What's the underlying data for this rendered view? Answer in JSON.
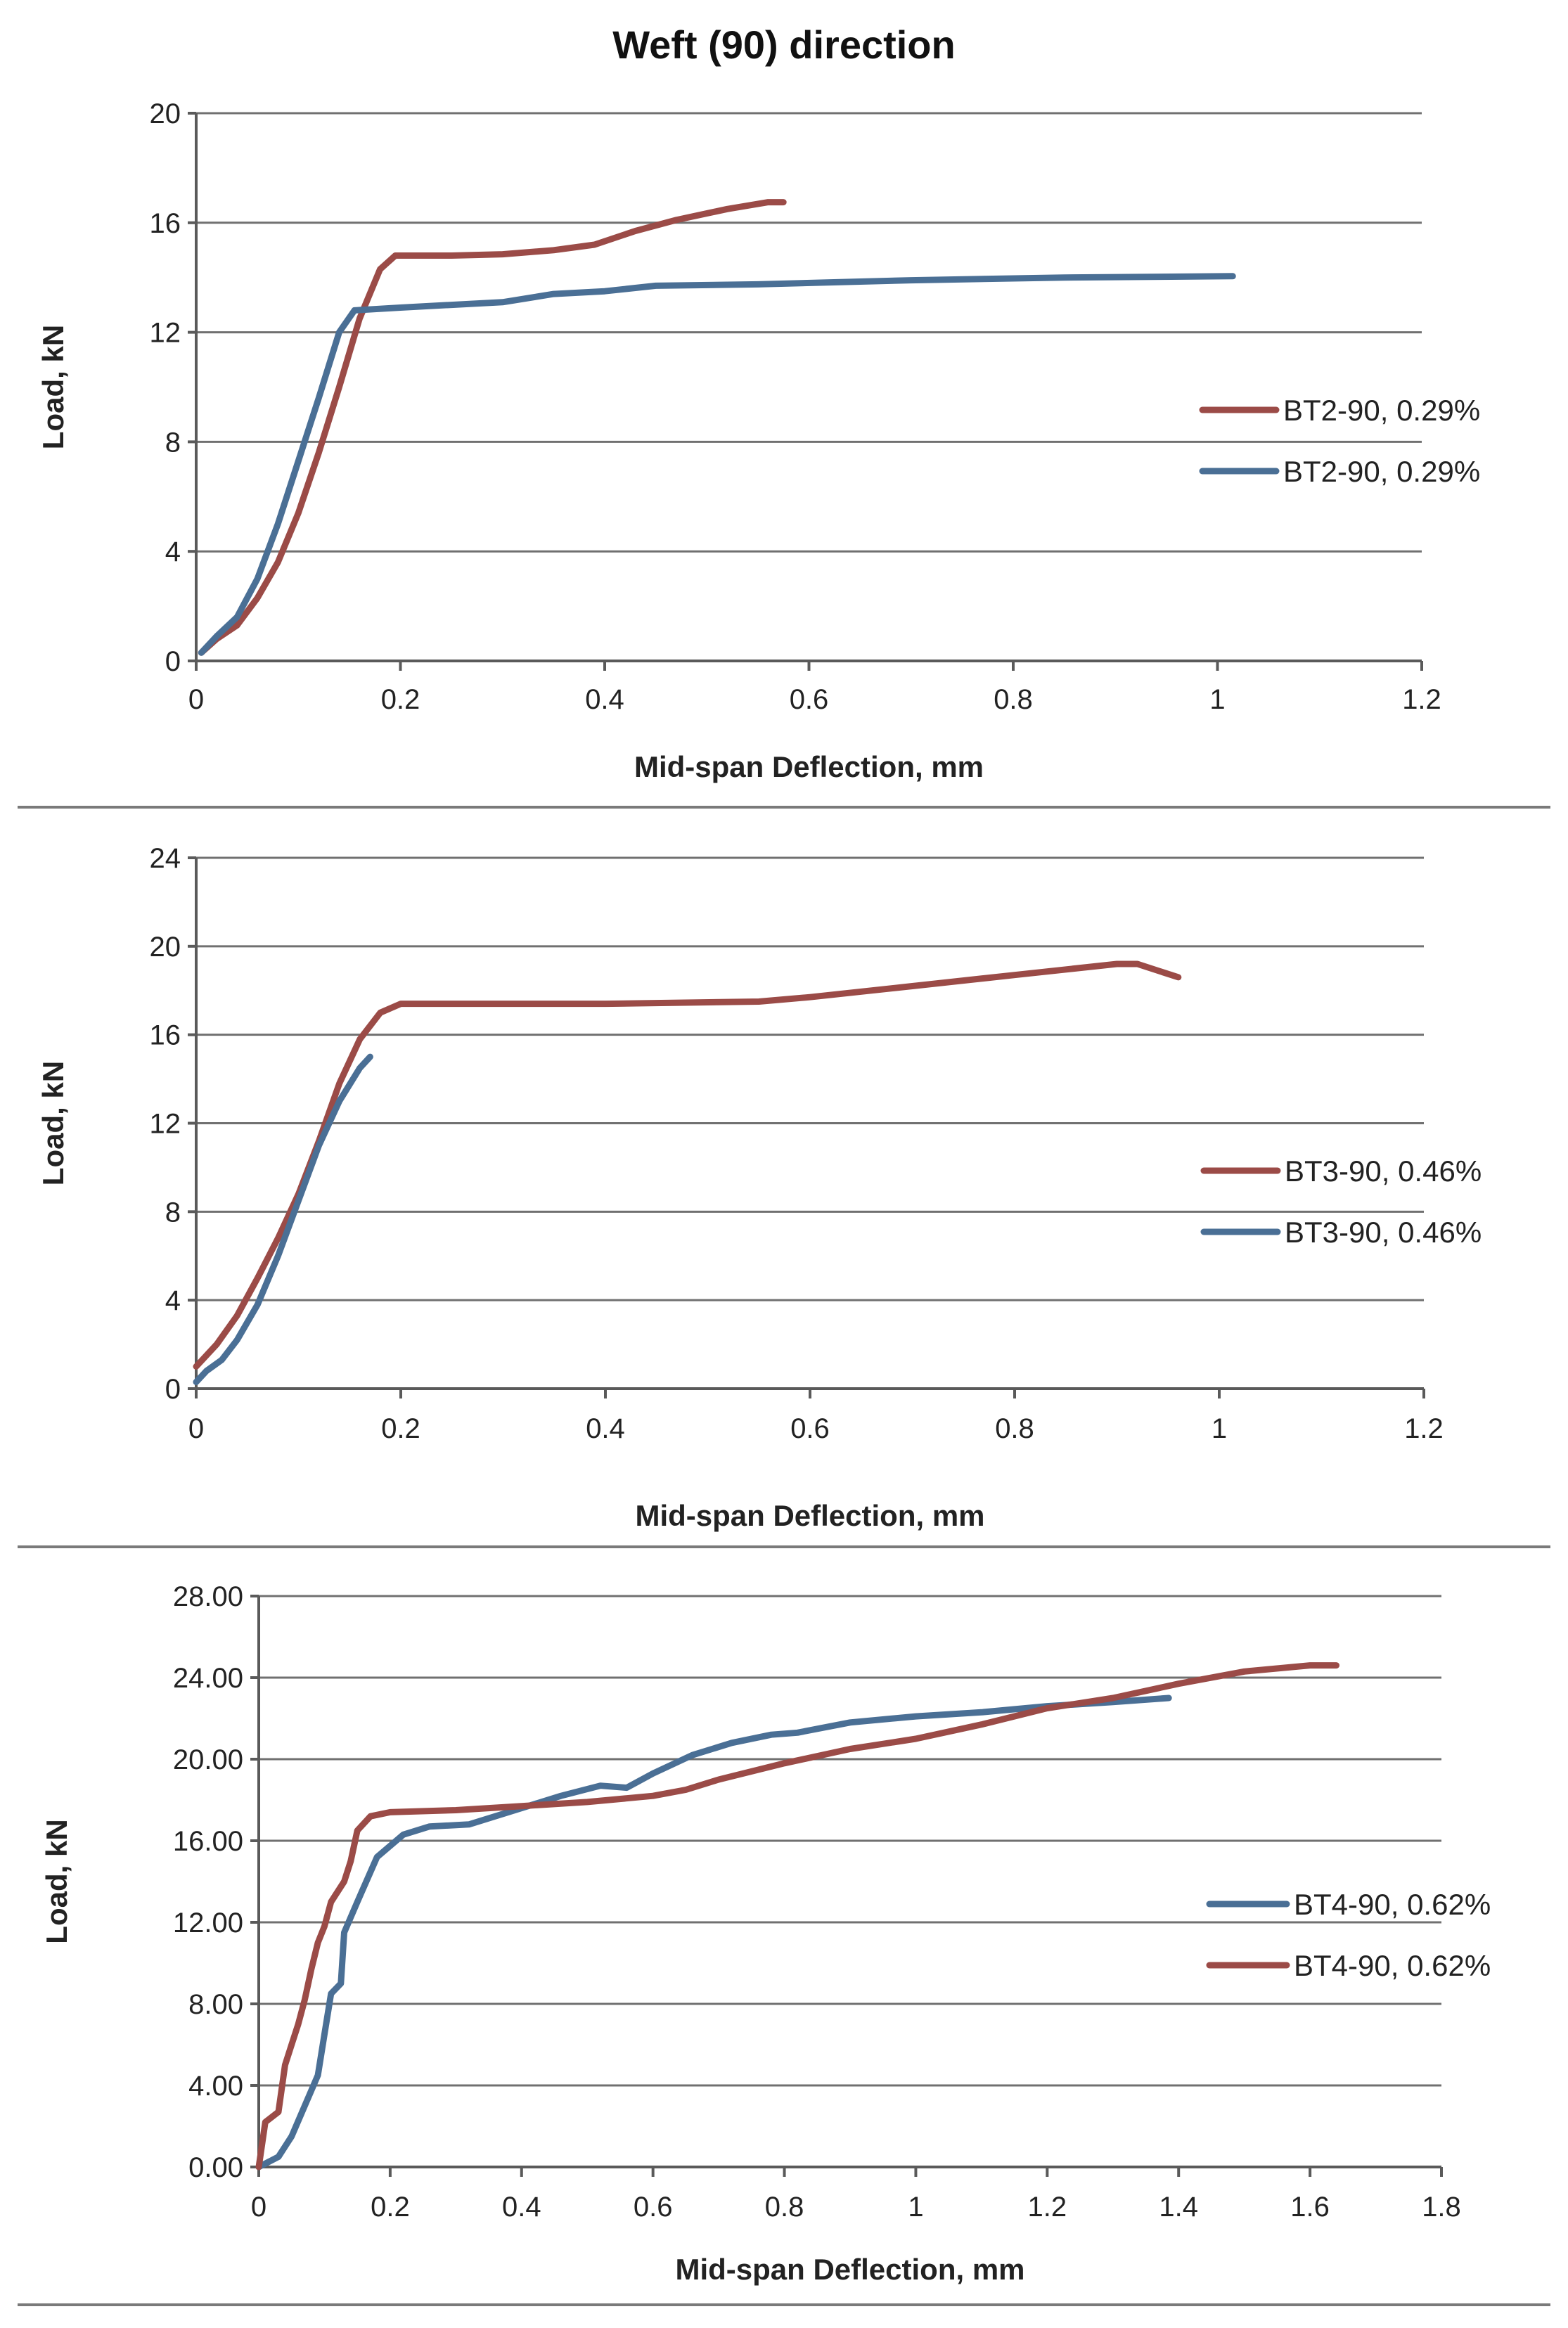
{
  "figure_title": "Weft (90) direction",
  "colors": {
    "red": "#9b4b47",
    "blue": "#4a6f95"
  },
  "chart_data": [
    {
      "type": "line",
      "title": "",
      "xlabel": "Mid-span Deflection, mm",
      "ylabel": "Load, kN",
      "xlim": [
        0,
        1.2
      ],
      "ylim": [
        0,
        20
      ],
      "xticks": [
        "0",
        "0.2",
        "0.4",
        "0.6",
        "0.8",
        "1",
        "1.2"
      ],
      "yticks": [
        "0",
        "4",
        "8",
        "12",
        "16",
        "20"
      ],
      "legend_position": "right",
      "series": [
        {
          "name": "BT2-90, 0.29%",
          "color": "#9b4b47",
          "points": [
            [
              0.005,
              0.3
            ],
            [
              0.02,
              0.8
            ],
            [
              0.04,
              1.3
            ],
            [
              0.06,
              2.3
            ],
            [
              0.08,
              3.6
            ],
            [
              0.1,
              5.4
            ],
            [
              0.12,
              7.6
            ],
            [
              0.14,
              10
            ],
            [
              0.16,
              12.5
            ],
            [
              0.18,
              14.3
            ],
            [
              0.195,
              14.8
            ],
            [
              0.25,
              14.8
            ],
            [
              0.3,
              14.85
            ],
            [
              0.35,
              15.0
            ],
            [
              0.39,
              15.2
            ],
            [
              0.43,
              15.7
            ],
            [
              0.47,
              16.1
            ],
            [
              0.52,
              16.5
            ],
            [
              0.56,
              16.75
            ],
            [
              0.575,
              16.75
            ]
          ]
        },
        {
          "name": "BT2-90, 0.29%",
          "color": "#4a6f95",
          "points": [
            [
              0.005,
              0.3
            ],
            [
              0.02,
              0.9
            ],
            [
              0.04,
              1.6
            ],
            [
              0.06,
              3.0
            ],
            [
              0.08,
              5.0
            ],
            [
              0.1,
              7.3
            ],
            [
              0.12,
              9.6
            ],
            [
              0.14,
              12.0
            ],
            [
              0.155,
              12.8
            ],
            [
              0.2,
              12.9
            ],
            [
              0.25,
              13.0
            ],
            [
              0.3,
              13.1
            ],
            [
              0.35,
              13.4
            ],
            [
              0.4,
              13.5
            ],
            [
              0.45,
              13.7
            ],
            [
              0.55,
              13.75
            ],
            [
              0.7,
              13.9
            ],
            [
              0.85,
              14.0
            ],
            [
              1.015,
              14.05
            ]
          ]
        }
      ]
    },
    {
      "type": "line",
      "title": "",
      "xlabel": "Mid-span Deflection, mm",
      "ylabel": "Load, kN",
      "xlim": [
        0,
        1.2
      ],
      "ylim": [
        0,
        24
      ],
      "xticks": [
        "0",
        "0.2",
        "0.4",
        "0.6",
        "0.8",
        "1",
        "1.2"
      ],
      "yticks": [
        "0",
        "4",
        "8",
        "12",
        "16",
        "20",
        "24"
      ],
      "legend_position": "right",
      "series": [
        {
          "name": "BT3-90, 0.46%",
          "color": "#9b4b47",
          "points": [
            [
              0.0,
              1.0
            ],
            [
              0.02,
              2.0
            ],
            [
              0.04,
              3.3
            ],
            [
              0.06,
              5.0
            ],
            [
              0.08,
              6.8
            ],
            [
              0.1,
              8.8
            ],
            [
              0.12,
              11.2
            ],
            [
              0.14,
              13.8
            ],
            [
              0.16,
              15.8
            ],
            [
              0.18,
              17.0
            ],
            [
              0.2,
              17.4
            ],
            [
              0.3,
              17.4
            ],
            [
              0.4,
              17.4
            ],
            [
              0.55,
              17.5
            ],
            [
              0.6,
              17.7
            ],
            [
              0.7,
              18.2
            ],
            [
              0.8,
              18.7
            ],
            [
              0.9,
              19.2
            ],
            [
              0.92,
              19.2
            ],
            [
              0.96,
              18.6
            ]
          ]
        },
        {
          "name": "BT3-90, 0.46%",
          "color": "#4a6f95",
          "points": [
            [
              0.0,
              0.3
            ],
            [
              0.01,
              0.8
            ],
            [
              0.025,
              1.3
            ],
            [
              0.04,
              2.2
            ],
            [
              0.06,
              3.8
            ],
            [
              0.08,
              6.0
            ],
            [
              0.1,
              8.5
            ],
            [
              0.12,
              11.0
            ],
            [
              0.14,
              13.0
            ],
            [
              0.16,
              14.5
            ],
            [
              0.17,
              15.0
            ]
          ]
        }
      ]
    },
    {
      "type": "line",
      "title": "",
      "xlabel": "Mid-span Deflection, mm",
      "ylabel": "Load, kN",
      "xlim": [
        0,
        1.8
      ],
      "ylim": [
        0,
        28
      ],
      "xticks": [
        "0",
        "0.2",
        "0.4",
        "0.6",
        "0.8",
        "1",
        "1.2",
        "1.4",
        "1.6",
        "1.8"
      ],
      "yticks": [
        "0.00",
        "4.00",
        "8.00",
        "12.00",
        "16.00",
        "20.00",
        "24.00",
        "28.00"
      ],
      "legend_position": "right",
      "series": [
        {
          "name": "BT4-90, 0.62%",
          "color": "#4a6f95",
          "points": [
            [
              0.0,
              0.0
            ],
            [
              0.03,
              0.5
            ],
            [
              0.05,
              1.5
            ],
            [
              0.07,
              3.0
            ],
            [
              0.09,
              4.5
            ],
            [
              0.1,
              6.5
            ],
            [
              0.11,
              8.5
            ],
            [
              0.125,
              9.0
            ],
            [
              0.13,
              11.5
            ],
            [
              0.15,
              13.0
            ],
            [
              0.18,
              15.2
            ],
            [
              0.22,
              16.3
            ],
            [
              0.26,
              16.7
            ],
            [
              0.32,
              16.8
            ],
            [
              0.4,
              17.6
            ],
            [
              0.46,
              18.2
            ],
            [
              0.52,
              18.7
            ],
            [
              0.56,
              18.6
            ],
            [
              0.6,
              19.3
            ],
            [
              0.66,
              20.2
            ],
            [
              0.72,
              20.8
            ],
            [
              0.78,
              21.2
            ],
            [
              0.82,
              21.3
            ],
            [
              0.9,
              21.8
            ],
            [
              1.0,
              22.1
            ],
            [
              1.1,
              22.3
            ],
            [
              1.2,
              22.6
            ],
            [
              1.3,
              22.8
            ],
            [
              1.385,
              23.0
            ]
          ]
        },
        {
          "name": "BT4-90, 0.62%",
          "color": "#9b4b47",
          "points": [
            [
              0.0,
              0.0
            ],
            [
              0.01,
              2.2
            ],
            [
              0.03,
              2.7
            ],
            [
              0.04,
              5.0
            ],
            [
              0.05,
              6.0
            ],
            [
              0.06,
              7.0
            ],
            [
              0.07,
              8.2
            ],
            [
              0.08,
              9.7
            ],
            [
              0.09,
              11.0
            ],
            [
              0.1,
              11.8
            ],
            [
              0.11,
              13.0
            ],
            [
              0.13,
              14.0
            ],
            [
              0.14,
              15.0
            ],
            [
              0.15,
              16.5
            ],
            [
              0.17,
              17.2
            ],
            [
              0.2,
              17.4
            ],
            [
              0.3,
              17.5
            ],
            [
              0.4,
              17.7
            ],
            [
              0.5,
              17.9
            ],
            [
              0.6,
              18.2
            ],
            [
              0.65,
              18.5
            ],
            [
              0.7,
              19.0
            ],
            [
              0.8,
              19.8
            ],
            [
              0.9,
              20.5
            ],
            [
              1.0,
              21.0
            ],
            [
              1.1,
              21.7
            ],
            [
              1.2,
              22.5
            ],
            [
              1.3,
              23.0
            ],
            [
              1.4,
              23.7
            ],
            [
              1.5,
              24.3
            ],
            [
              1.6,
              24.6
            ],
            [
              1.64,
              24.6
            ]
          ]
        }
      ]
    }
  ]
}
